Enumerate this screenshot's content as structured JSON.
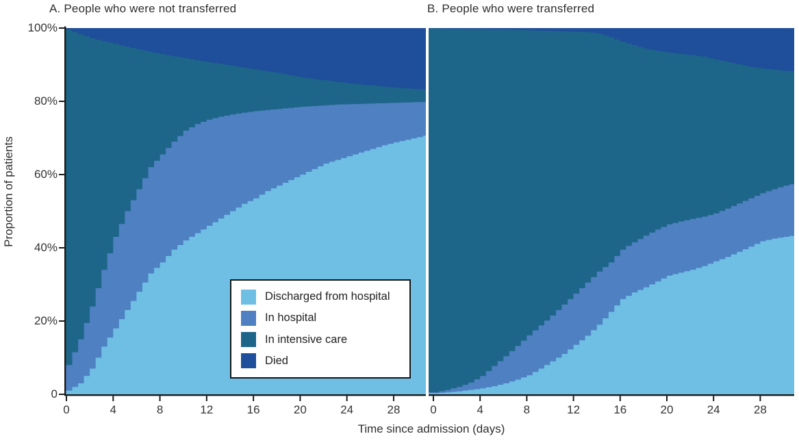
{
  "figure": {
    "panels": [
      {
        "id": "A",
        "title": "A. People who were not transferred"
      },
      {
        "id": "B",
        "title": "B. People who were transferred"
      }
    ],
    "x_axis": {
      "label": "Time since admission (days)",
      "ticks": [
        0,
        4,
        8,
        12,
        16,
        20,
        24,
        28
      ],
      "max_day": 31
    },
    "y_axis": {
      "label": "Proportion of patients",
      "ticks": [
        "100%",
        "80%",
        "60%",
        "40%",
        "20%",
        "0"
      ],
      "tick_values": [
        100,
        80,
        60,
        40,
        20,
        0
      ]
    },
    "legend": {
      "items": [
        {
          "label": "Discharged from hospital",
          "color": "#6FBFE5"
        },
        {
          "label": "In hospital",
          "color": "#4E80C2"
        },
        {
          "label": "In intensive care",
          "color": "#1E6689"
        },
        {
          "label": "Died",
          "color": "#1F4E9A"
        }
      ]
    }
  },
  "chart_data": [
    {
      "type": "area",
      "stacked": true,
      "title": "A. People who were not transferred",
      "xlabel": "Time since admission (days)",
      "ylabel": "Proportion of patients",
      "xlim": [
        0,
        31
      ],
      "ylim": [
        0,
        100
      ],
      "units": "percent",
      "x_days": [
        0,
        1,
        2,
        3,
        4,
        5,
        6,
        7,
        8,
        9,
        10,
        11,
        12,
        13,
        14,
        15,
        16,
        17,
        18,
        19,
        20,
        21,
        22,
        23,
        24,
        25,
        26,
        27,
        28,
        29,
        30,
        31
      ],
      "series": [
        {
          "name": "Discharged from hospital",
          "values": [
            1,
            3,
            7,
            13,
            18,
            23,
            28,
            33,
            36,
            39.5,
            42,
            44,
            46,
            48,
            50,
            52,
            53.5,
            55.5,
            57,
            58.5,
            60,
            61.5,
            63,
            64,
            65,
            66,
            67,
            68,
            68.8,
            69.5,
            70.2,
            71
          ]
        },
        {
          "name": "In hospital",
          "values": [
            7,
            12,
            17,
            21,
            25,
            27,
            28,
            29,
            29.5,
            29.5,
            30,
            29.8,
            29,
            27.8,
            26.4,
            24.9,
            23.8,
            22.1,
            20.9,
            19.7,
            18.5,
            17.2,
            15.9,
            15.1,
            14.2,
            13.3,
            12.4,
            11.5,
            10.8,
            10.2,
            9.6,
            8.9
          ]
        },
        {
          "name": "In intensive care",
          "values": [
            91.5,
            83.3,
            73.2,
            62.4,
            52.7,
            44.9,
            38.2,
            31.5,
            27.4,
            23.3,
            19.8,
            17.4,
            15.7,
            14.4,
            13.3,
            12.3,
            11.4,
            10.6,
            9.8,
            8.9,
            8,
            7.4,
            6.8,
            6.2,
            5.7,
            5.3,
            4.9,
            4.5,
            4.1,
            3.8,
            3.5,
            3.3
          ]
        },
        {
          "name": "Died",
          "values": [
            0.5,
            1.7,
            2.8,
            3.6,
            4.3,
            5.1,
            5.8,
            6.5,
            7.1,
            7.7,
            8.2,
            8.8,
            9.3,
            9.8,
            10.3,
            10.8,
            11.3,
            11.8,
            12.3,
            12.9,
            13.5,
            13.9,
            14.3,
            14.7,
            15.1,
            15.4,
            15.7,
            16,
            16.3,
            16.5,
            16.7,
            16.8
          ]
        }
      ]
    },
    {
      "type": "area",
      "stacked": true,
      "title": "B. People who were transferred",
      "xlabel": "Time since admission (days)",
      "ylabel": "Proportion of patients",
      "xlim": [
        0,
        31
      ],
      "ylim": [
        0,
        100
      ],
      "units": "percent",
      "x_days": [
        0,
        1,
        2,
        3,
        4,
        5,
        6,
        7,
        8,
        9,
        10,
        11,
        12,
        13,
        14,
        15,
        16,
        17,
        18,
        19,
        20,
        21,
        22,
        23,
        24,
        25,
        26,
        27,
        28,
        29,
        30,
        31
      ],
      "series": [
        {
          "name": "Discharged from hospital",
          "values": [
            0.3,
            0.5,
            0.8,
            1.2,
            1.6,
            2.2,
            3,
            4,
            5.2,
            7,
            9,
            11,
            13.5,
            16,
            19,
            22.5,
            26,
            27.8,
            29.2,
            30.8,
            32.4,
            33.2,
            34,
            35,
            36.3,
            37.5,
            38.9,
            40.3,
            41.8,
            42.5,
            43,
            43.5
          ]
        },
        {
          "name": "In hospital",
          "values": [
            0.2,
            0.7,
            1.2,
            2,
            3.4,
            5.5,
            7.4,
            9.2,
            10.9,
            11.8,
            12.5,
            13.5,
            14,
            14.5,
            14.5,
            13.5,
            13.5,
            13.7,
            14.1,
            14.2,
            14,
            14,
            13.9,
            13.5,
            13.1,
            13.2,
            13.2,
            13.2,
            13.1,
            13.5,
            14,
            14.2
          ]
        },
        {
          "name": "In intensive care",
          "values": [
            99.4,
            98.6,
            97.8,
            96.5,
            94.7,
            91.9,
            89.2,
            86.3,
            83.3,
            80.5,
            77.7,
            74.6,
            71.5,
            68.4,
            65,
            61.5,
            56.8,
            53.8,
            51.1,
            48.8,
            46.9,
            45.7,
            44.7,
            43.7,
            42,
            40.1,
            38,
            35.9,
            34.1,
            32.6,
            31.3,
            30.5
          ]
        },
        {
          "name": "Died",
          "values": [
            0.1,
            0.2,
            0.2,
            0.3,
            0.3,
            0.4,
            0.4,
            0.5,
            0.6,
            0.7,
            0.8,
            0.9,
            1,
            1.1,
            1.5,
            2.5,
            3.7,
            4.7,
            5.6,
            6.2,
            6.7,
            7.1,
            7.4,
            7.8,
            8.6,
            9.2,
            9.9,
            10.6,
            11,
            11.4,
            11.7,
            11.8
          ]
        }
      ]
    }
  ]
}
